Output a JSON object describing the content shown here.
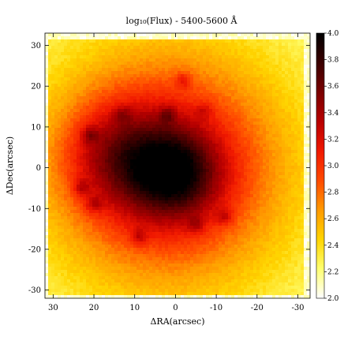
{
  "chart_data": {
    "type": "heatmap",
    "title": "log₁₀(Flux) - 5400-5600 Å",
    "xlabel": "ΔRA(arcsec)",
    "ylabel": "ΔDec(arcsec)",
    "xlim": [
      32,
      -33
    ],
    "ylim": [
      -32,
      33
    ],
    "x_ticks": [
      30,
      20,
      10,
      0,
      -10,
      -20,
      -30
    ],
    "y_ticks": [
      -30,
      -20,
      -10,
      0,
      10,
      20,
      30
    ],
    "colorbar": {
      "min": 2.0,
      "max": 4.0,
      "ticks": [
        2.0,
        2.2,
        2.4,
        2.6,
        2.8,
        3.0,
        3.2,
        3.4,
        3.6,
        3.8,
        4.0
      ],
      "colormap": "hot_r",
      "colors": [
        "#ffffff",
        "#ffff70",
        "#ffd400",
        "#ff9a00",
        "#ff4a00",
        "#f01800",
        "#b80000",
        "#7a0000",
        "#3a0000",
        "#000000"
      ]
    },
    "model": {
      "background_level": 2.2,
      "core": {
        "x": 0,
        "y": -1.5,
        "peak": 4.05,
        "sigma": 7.5
      },
      "envelope": {
        "x": 2,
        "y": 0,
        "amplitude": 1.1,
        "sigma": 20
      },
      "extended_lobe": {
        "x": 14,
        "y": 3,
        "amplitude": 0.55,
        "sigma": 9
      },
      "knots": [
        {
          "x": 21,
          "y": 8,
          "amplitude": 0.35
        },
        {
          "x": 23,
          "y": -5,
          "amplitude": 0.3
        },
        {
          "x": 20,
          "y": -9,
          "amplitude": 0.3
        },
        {
          "x": 9,
          "y": -17,
          "amplitude": 0.3
        },
        {
          "x": -12,
          "y": -12,
          "amplitude": 0.3
        },
        {
          "x": 2,
          "y": 13,
          "amplitude": 0.3
        },
        {
          "x": -2,
          "y": 21.5,
          "amplitude": 0.3
        },
        {
          "x": 13,
          "y": 13,
          "amplitude": 0.25
        },
        {
          "x": -5,
          "y": -14,
          "amplitude": 0.25
        },
        {
          "x": -7,
          "y": 14,
          "amplitude": 0.2
        }
      ]
    }
  }
}
